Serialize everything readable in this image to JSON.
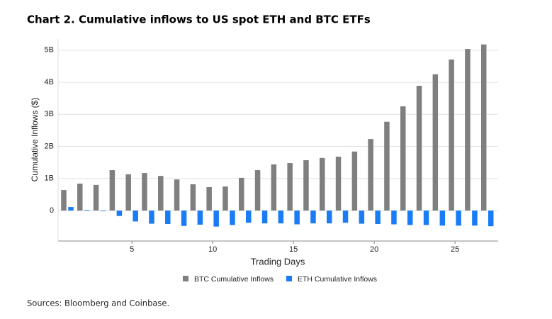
{
  "chart_data": {
    "type": "bar",
    "title": "Chart 2. Cumulative inflows to US spot ETH and BTC ETFs",
    "source": "Sources: Bloomberg and Coinbase.",
    "x_label": "Trading Days",
    "y_label": "Cumulative Inflows ($)",
    "x": [
      1,
      2,
      3,
      4,
      5,
      6,
      7,
      8,
      9,
      10,
      11,
      12,
      13,
      14,
      15,
      16,
      17,
      18,
      19,
      20,
      21,
      22,
      23,
      24,
      25,
      26,
      27
    ],
    "series": [
      {
        "name": "BTC Cumulative Inflows",
        "color": "#7f7f7f",
        "values": [
          0.64,
          0.84,
          0.8,
          1.26,
          1.13,
          1.17,
          1.08,
          0.97,
          0.82,
          0.73,
          0.75,
          1.02,
          1.26,
          1.44,
          1.48,
          1.57,
          1.64,
          1.68,
          1.84,
          2.23,
          2.77,
          3.25,
          3.89,
          4.25,
          4.71,
          5.04,
          5.18
        ]
      },
      {
        "name": "ETH Cumulative Inflows",
        "color": "#1a7cf5",
        "values": [
          0.11,
          0.02,
          -0.01,
          -0.17,
          -0.34,
          -0.41,
          -0.42,
          -0.48,
          -0.44,
          -0.5,
          -0.45,
          -0.38,
          -0.4,
          -0.4,
          -0.43,
          -0.4,
          -0.4,
          -0.38,
          -0.41,
          -0.42,
          -0.43,
          -0.45,
          -0.45,
          -0.47,
          -0.47,
          -0.47,
          -0.49
        ]
      }
    ],
    "xlim": [
      0.43,
      27.67
    ],
    "xticks": [
      5,
      10,
      15,
      20,
      25
    ],
    "ylim": [
      -0.95,
      5.35
    ],
    "yticks": [
      0,
      {
        "value": 1,
        "label": "1B"
      },
      {
        "value": 2,
        "label": "2B"
      },
      {
        "value": 3,
        "label": "3B"
      },
      {
        "value": 4,
        "label": "4B"
      },
      {
        "value": 5,
        "label": "5B"
      }
    ],
    "grid": true,
    "legend": "bottom"
  }
}
